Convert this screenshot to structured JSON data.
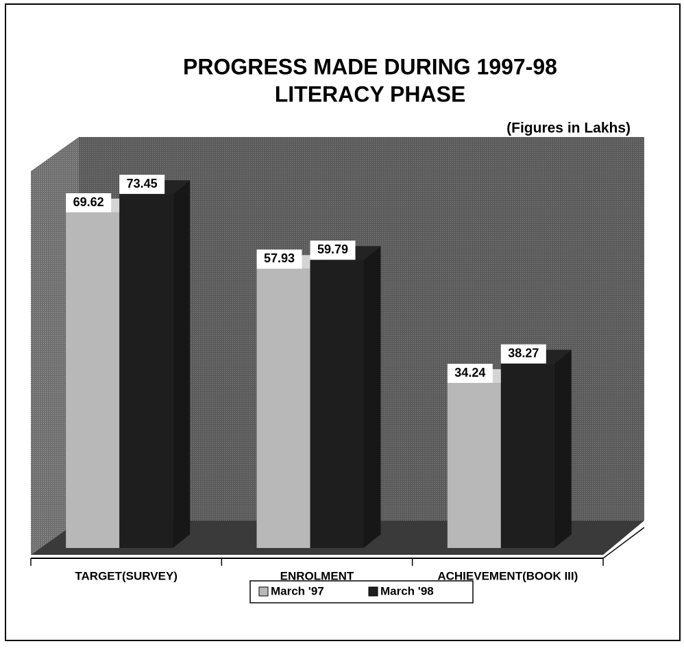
{
  "chart_data": {
    "type": "bar",
    "title": [
      "PROGRESS MADE DURING 1997-98",
      "LITERACY PHASE"
    ],
    "subtitle": "(Figures in Lakhs)",
    "categories": [
      "TARGET(SURVEY)",
      "ENROLMENT",
      "ACHIEVEMENT(BOOK III)"
    ],
    "series": [
      {
        "name": "March '97",
        "color": "#b8b8b8",
        "values": [
          69.62,
          57.93,
          34.24
        ]
      },
      {
        "name": "March '98",
        "color": "#1e1e1e",
        "values": [
          73.45,
          59.79,
          38.27
        ]
      }
    ],
    "ylim": [
      0,
      80
    ]
  }
}
